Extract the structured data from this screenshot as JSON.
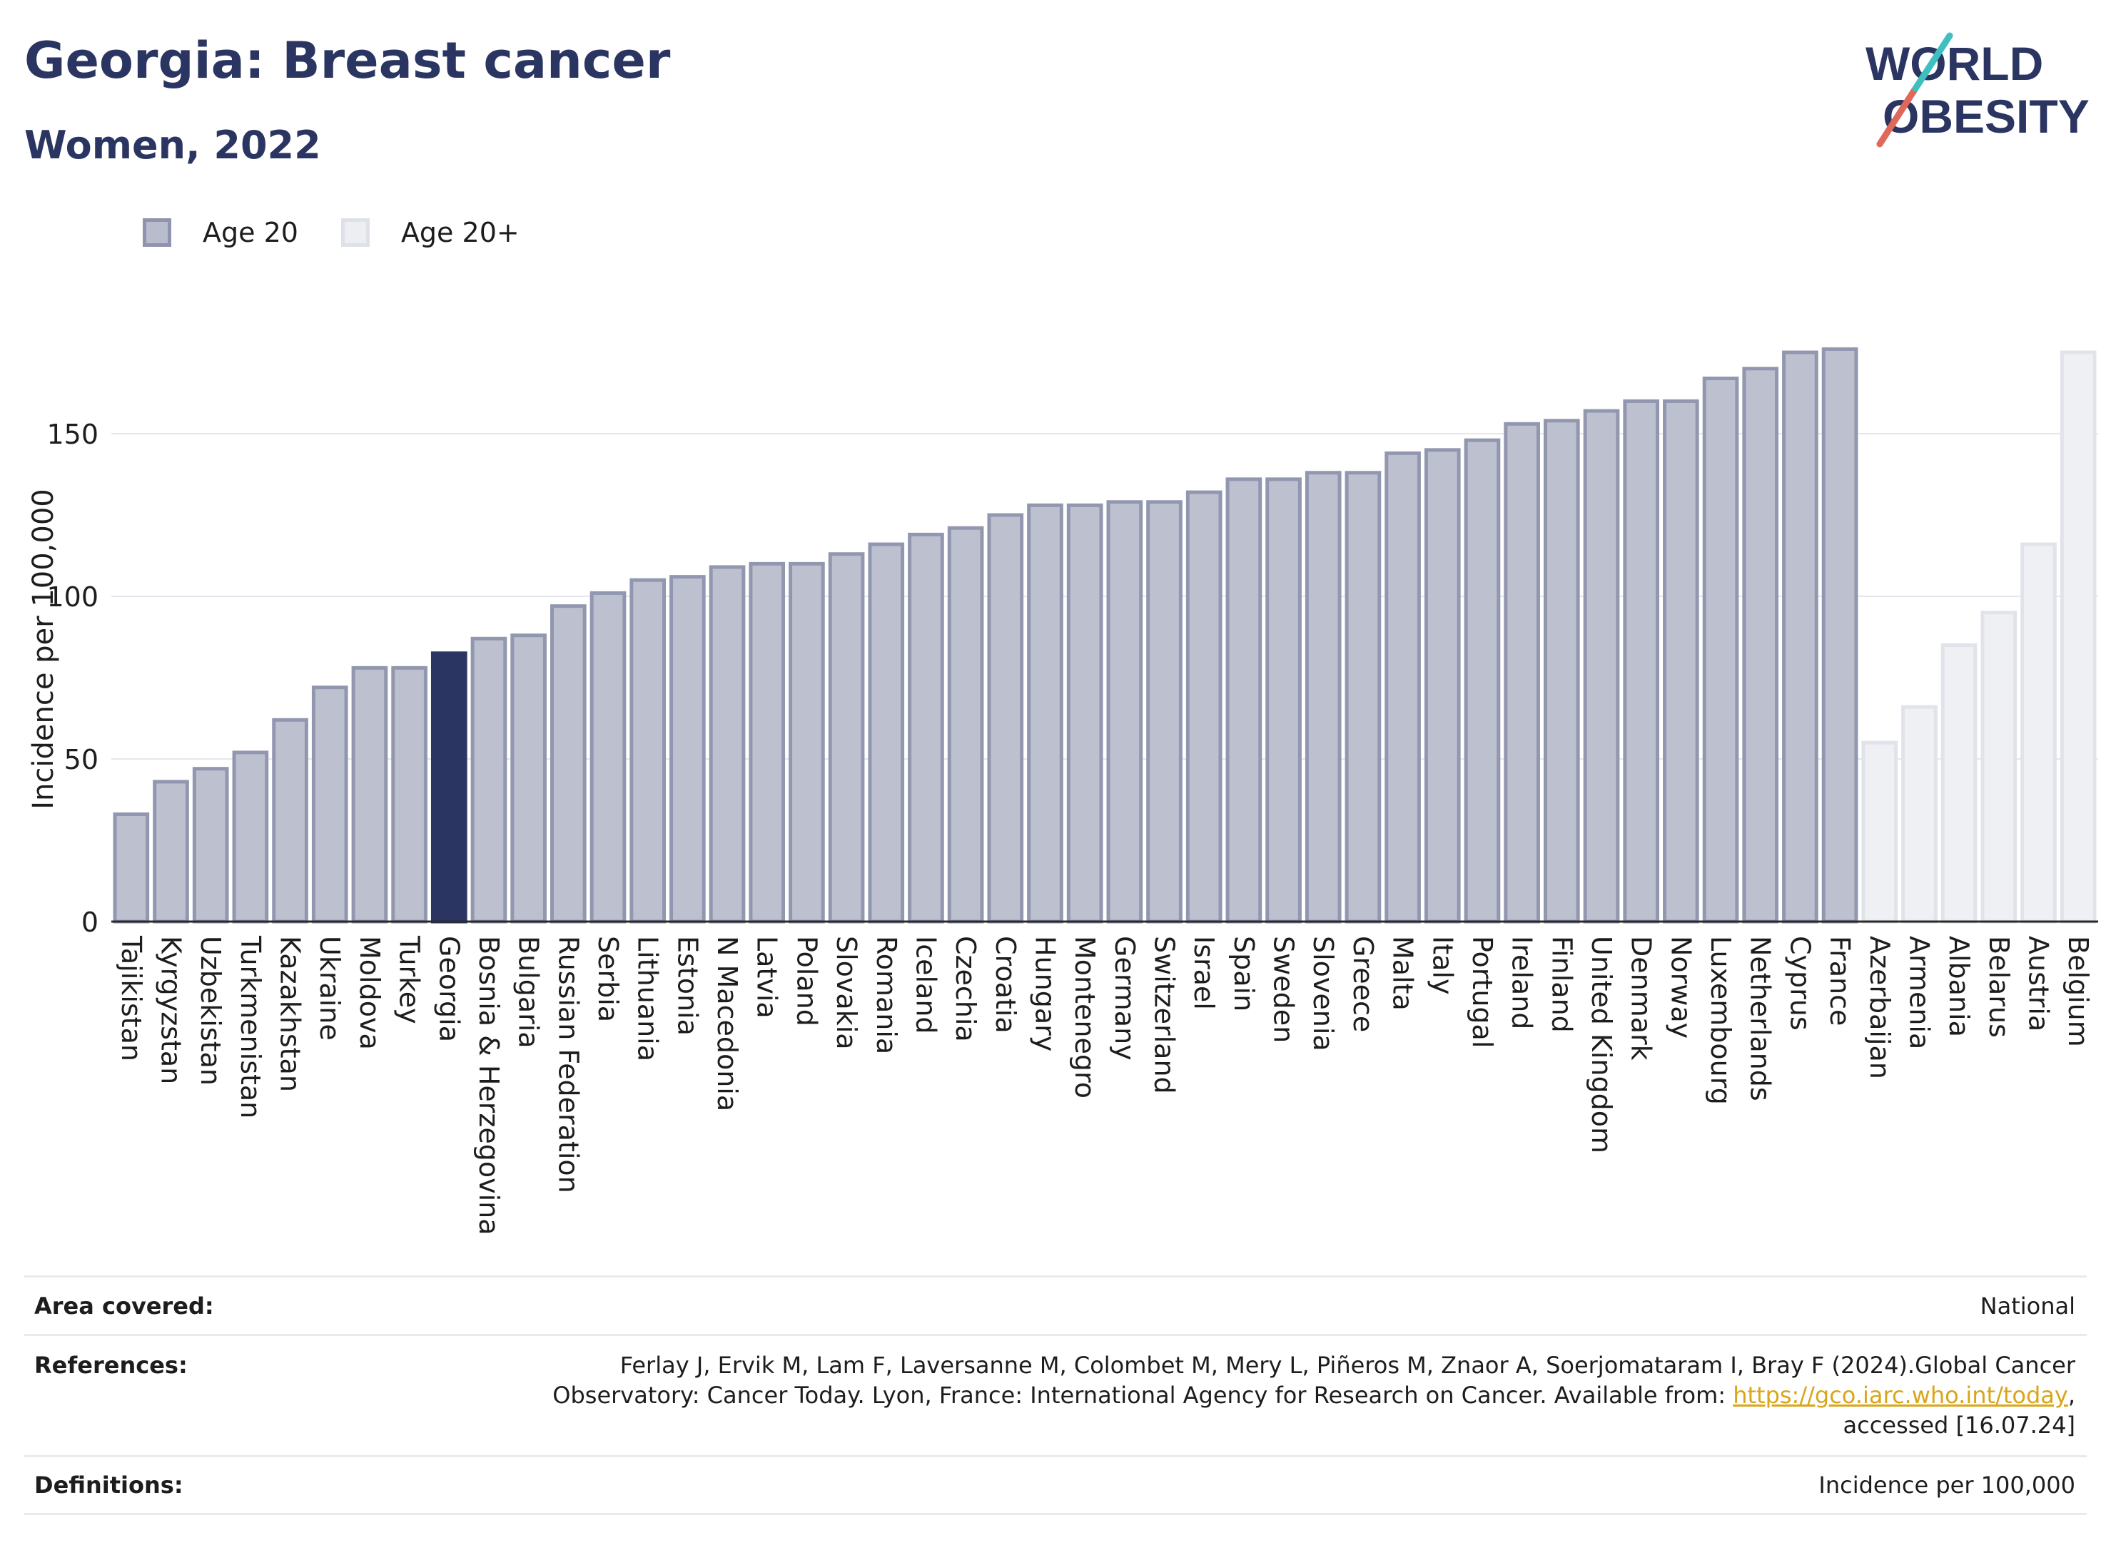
{
  "header": {
    "title": "Georgia: Breast cancer",
    "subtitle": "Women, 2022"
  },
  "logo": {
    "line1": "WORLD",
    "line2": "OBESITY"
  },
  "legend": [
    {
      "label": "Age 20",
      "color": "#9da2b9"
    },
    {
      "label": "Age 20+",
      "color": "#e2e3ea"
    }
  ],
  "colors": {
    "highlight": "#2b3561",
    "age20": "#9da2b9",
    "age20plus": "#e2e3ea",
    "accent_red": "#e0685a",
    "accent_teal": "#3fbfbf"
  },
  "chart_data": {
    "type": "bar",
    "ylabel": "Incidence per 100,000",
    "ylim": [
      0,
      180
    ],
    "yticks": [
      0,
      50,
      100,
      150
    ],
    "grid": true,
    "highlight": "Georgia",
    "categories": [
      "Tajikistan",
      "Kyrgyzstan",
      "Uzbekistan",
      "Turkmenistan",
      "Kazakhstan",
      "Ukraine",
      "Moldova",
      "Turkey",
      "Georgia",
      "Bosnia & Herzegovina",
      "Bulgaria",
      "Russian Federation",
      "Serbia",
      "Lithuania",
      "Estonia",
      "N Macedonia",
      "Latvia",
      "Poland",
      "Slovakia",
      "Romania",
      "Iceland",
      "Czechia",
      "Croatia",
      "Hungary",
      "Montenegro",
      "Germany",
      "Switzerland",
      "Israel",
      "Spain",
      "Sweden",
      "Slovenia",
      "Greece",
      "Malta",
      "Italy",
      "Portugal",
      "Ireland",
      "Finland",
      "United Kingdom",
      "Denmark",
      "Norway",
      "Luxembourg",
      "Netherlands",
      "Cyprus",
      "France",
      "Azerbaijan",
      "Armenia",
      "Albania",
      "Belarus",
      "Austria",
      "Belgium"
    ],
    "values": [
      33,
      43,
      47,
      52,
      62,
      72,
      78,
      78,
      82.5,
      87,
      88,
      97,
      101,
      105,
      106,
      109,
      110,
      110,
      113,
      116,
      119,
      121,
      125,
      128,
      128,
      129,
      129,
      132,
      136,
      136,
      138,
      138,
      144,
      145,
      148,
      153,
      154,
      157,
      160,
      160,
      167,
      170,
      175,
      176,
      55,
      66,
      85,
      95,
      116,
      175
    ],
    "series_group": [
      "Age 20",
      "Age 20",
      "Age 20",
      "Age 20",
      "Age 20",
      "Age 20",
      "Age 20",
      "Age 20",
      "Age 20",
      "Age 20",
      "Age 20",
      "Age 20",
      "Age 20",
      "Age 20",
      "Age 20",
      "Age 20",
      "Age 20",
      "Age 20",
      "Age 20",
      "Age 20",
      "Age 20",
      "Age 20",
      "Age 20",
      "Age 20",
      "Age 20",
      "Age 20",
      "Age 20",
      "Age 20",
      "Age 20",
      "Age 20",
      "Age 20",
      "Age 20",
      "Age 20",
      "Age 20",
      "Age 20",
      "Age 20",
      "Age 20",
      "Age 20",
      "Age 20",
      "Age 20",
      "Age 20",
      "Age 20",
      "Age 20",
      "Age 20",
      "Age 20+",
      "Age 20+",
      "Age 20+",
      "Age 20+",
      "Age 20+",
      "Age 20+"
    ]
  },
  "info": {
    "area_label": "Area covered:",
    "area_value": "National",
    "references_label": "References:",
    "references_line1": "Ferlay J, Ervik M, Lam F, Laversanne M, Colombet M, Mery L, Piñeros M, Znaor A, Soerjomataram I, Bray F (2024).Global Cancer",
    "references_line2_pre": "Observatory: Cancer Today. Lyon, France: International Agency for Research on Cancer. Available from: ",
    "references_link": "https://gco.iarc.who.int/today",
    "references_line2_post": ",",
    "references_line3": "accessed [16.07.24]",
    "definitions_label": "Definitions:",
    "definitions_value": "Incidence per 100,000"
  }
}
